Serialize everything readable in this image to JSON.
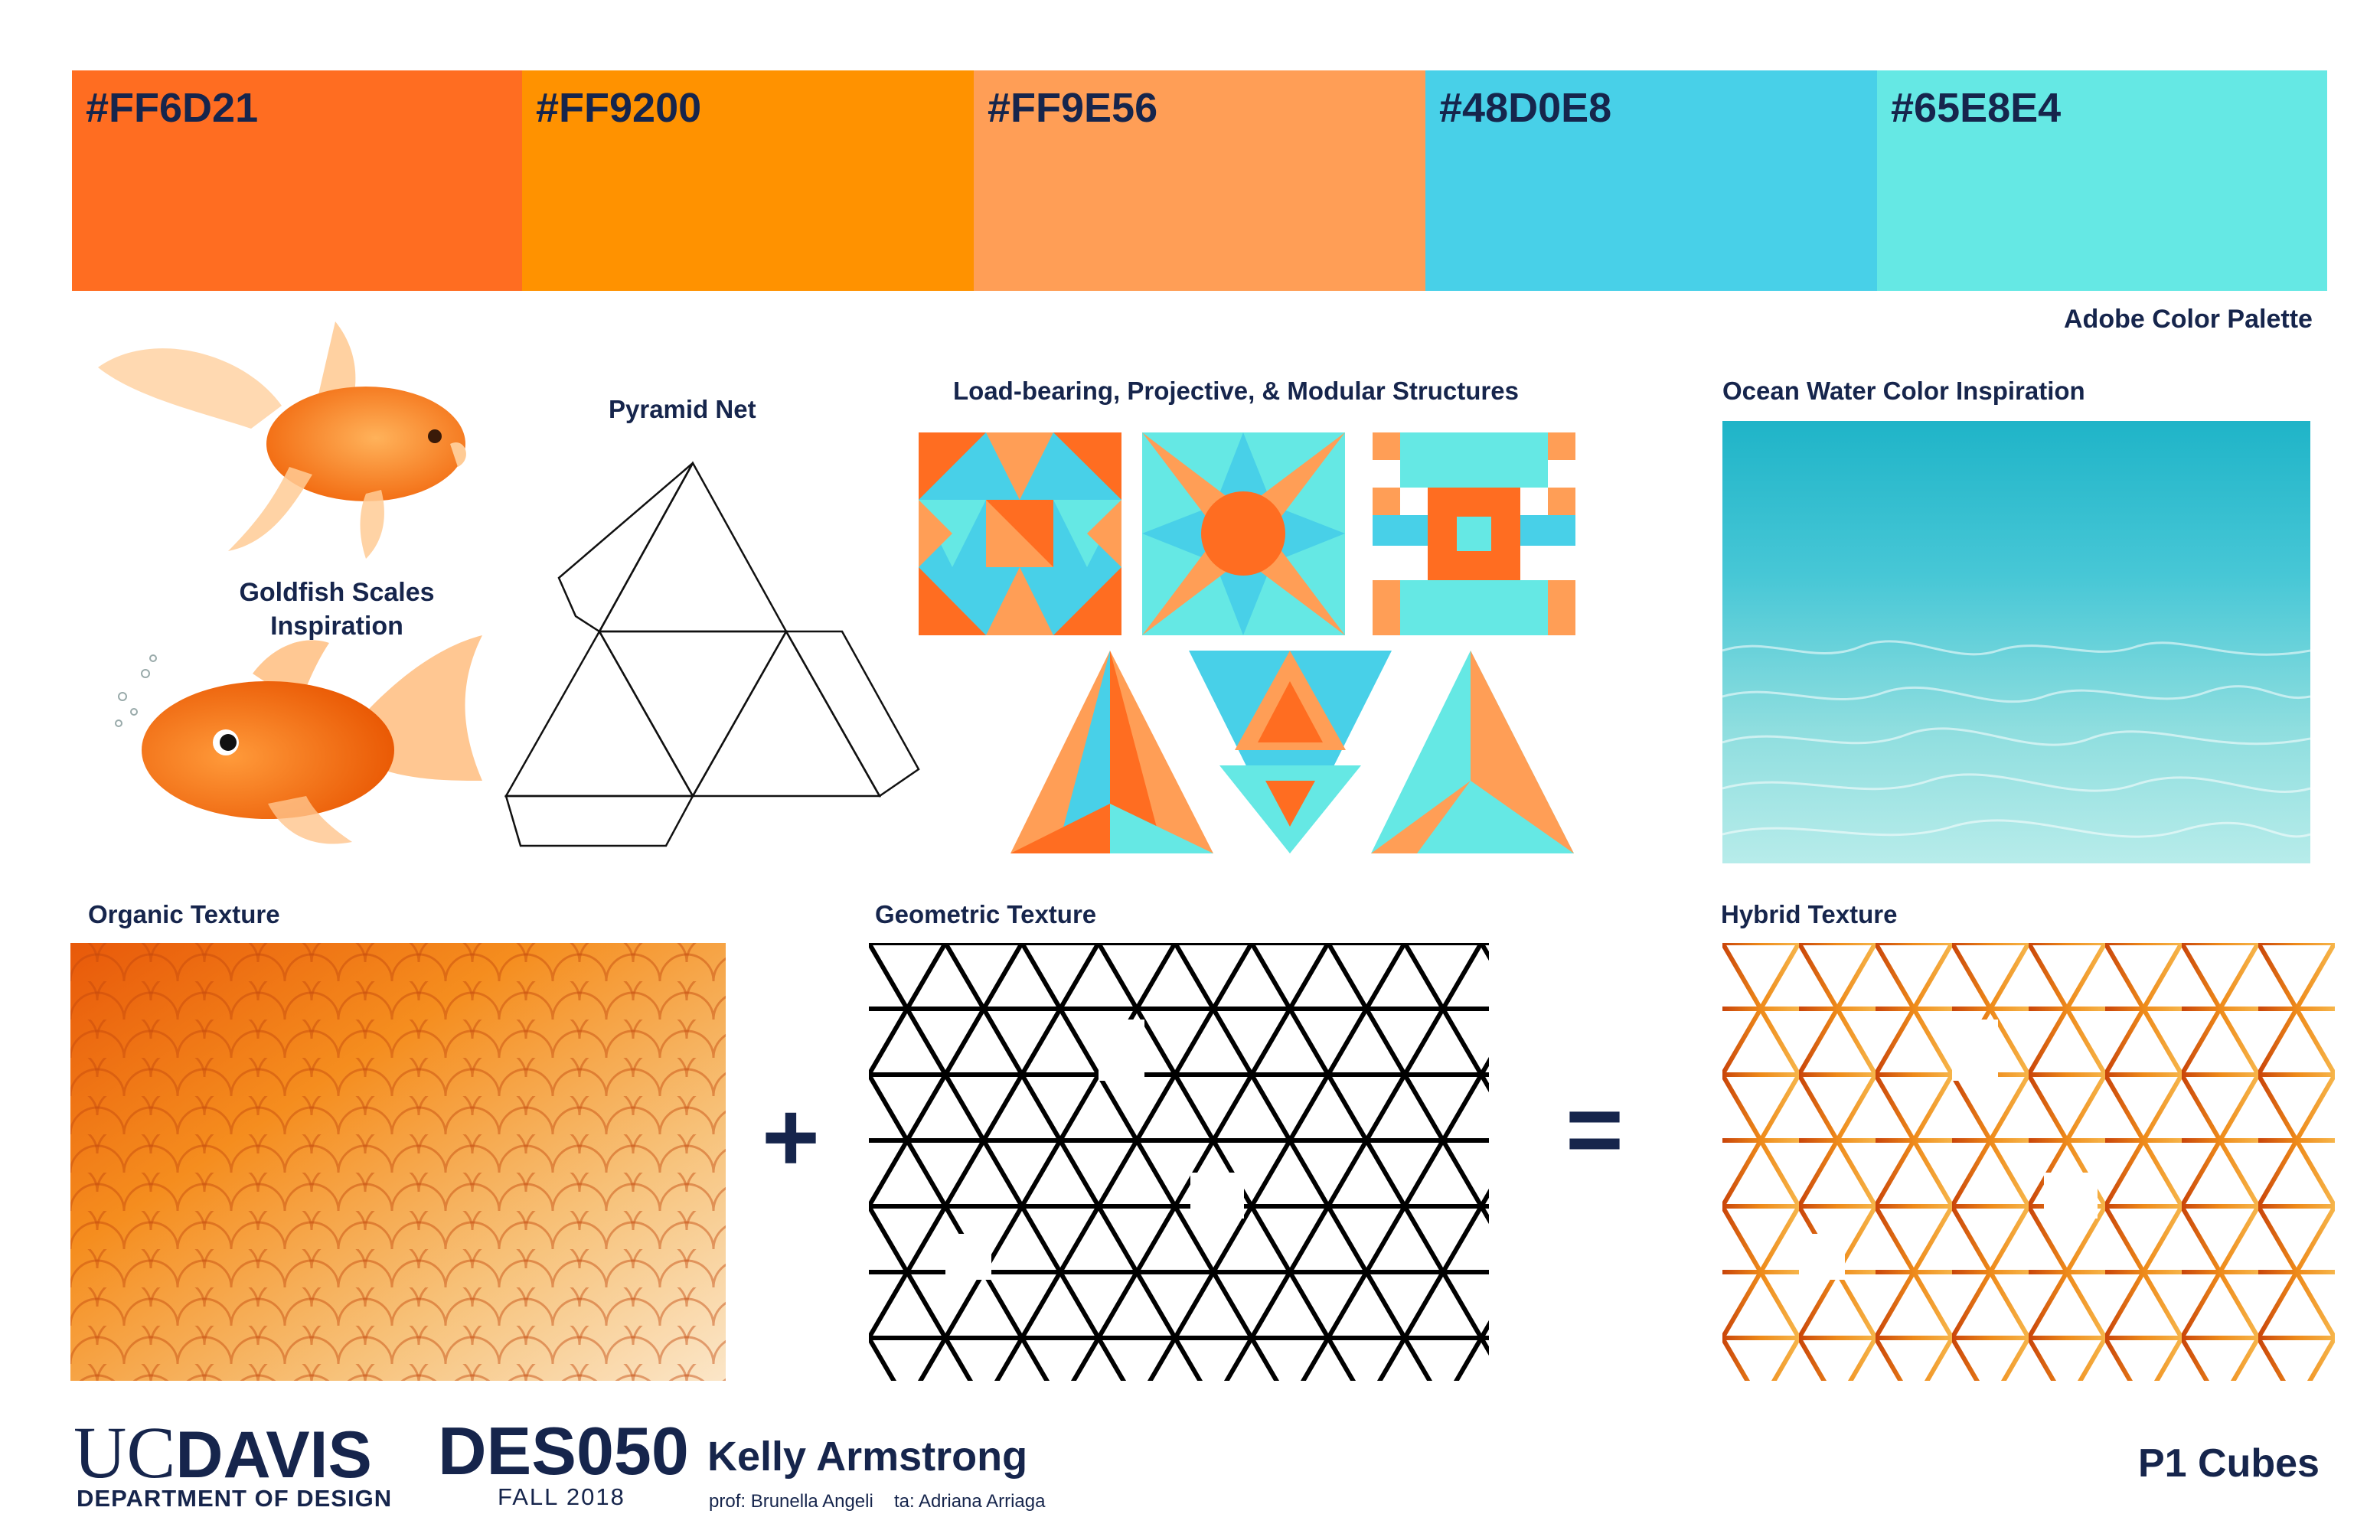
{
  "palette": {
    "swatches": [
      {
        "hex": "#FF6D21",
        "label": "#FF6D21"
      },
      {
        "hex": "#FF9200",
        "label": "#FF9200"
      },
      {
        "hex": "#FF9E56",
        "label": "#FF9E56"
      },
      {
        "hex": "#48D0E8",
        "label": "#48D0E8"
      },
      {
        "hex": "#65E8E4",
        "label": "#65E8E4"
      }
    ],
    "caption": "Adobe Color Palette"
  },
  "sections": {
    "goldfish": "Goldfish Scales\nInspiration",
    "pyramid": "Pyramid Net",
    "structures": "Load-bearing, Projective, & Modular Structures",
    "ocean": "Ocean Water Color Inspiration",
    "organic": "Organic Texture",
    "geometric": "Geometric Texture",
    "hybrid": "Hybrid Texture"
  },
  "operators": {
    "plus": "+",
    "equals": "="
  },
  "footer": {
    "logo_uc": "UC",
    "logo_davis": "DAVIS",
    "department": "DEPARTMENT OF DESIGN",
    "course": "DES050",
    "term": "FALL 2018",
    "student": "Kelly Armstrong",
    "prof": "prof: Brunella Angeli",
    "ta": "ta: Adriana Arriaga",
    "project": "P1 Cubes"
  }
}
